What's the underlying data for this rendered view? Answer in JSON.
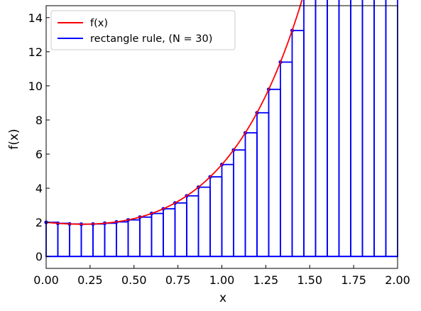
{
  "chart_data": {
    "type": "line",
    "xlabel": "x",
    "ylabel": "f(x)",
    "xlim": [
      0,
      2
    ],
    "ylim": [
      -0.7,
      14.7
    ],
    "xticks": [
      "0.00",
      "0.25",
      "0.50",
      "0.75",
      "1.00",
      "1.25",
      "1.50",
      "1.75",
      "2.00"
    ],
    "yticks": [
      "0",
      "2",
      "4",
      "6",
      "8",
      "10",
      "12",
      "14"
    ],
    "grid": false,
    "legend_position": "upper-left",
    "rectangle_count": 30,
    "series": [
      {
        "name": "f(x)",
        "color": "#ff0000",
        "function": "exp(2x) - 3x + 1",
        "x_range": [
          0,
          2
        ]
      },
      {
        "name": "rectangle rule, (N = 30)",
        "color": "#0000ff",
        "sample": "left endpoint"
      }
    ]
  }
}
